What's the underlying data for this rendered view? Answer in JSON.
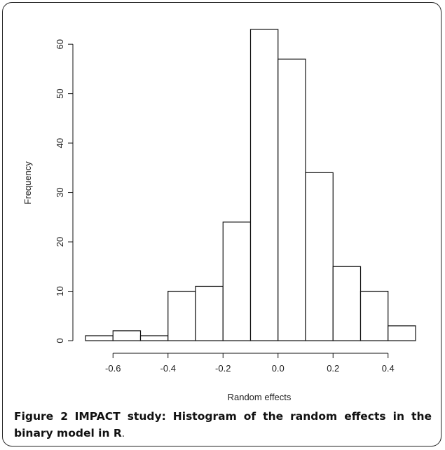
{
  "chart_data": {
    "type": "bar",
    "xlabel": "Random effects",
    "ylabel": "Frequency",
    "bins": [
      {
        "x0": -0.7,
        "x1": -0.6,
        "count": 1
      },
      {
        "x0": -0.6,
        "x1": -0.5,
        "count": 2
      },
      {
        "x0": -0.5,
        "x1": -0.4,
        "count": 1
      },
      {
        "x0": -0.4,
        "x1": -0.3,
        "count": 10
      },
      {
        "x0": -0.3,
        "x1": -0.2,
        "count": 11
      },
      {
        "x0": -0.2,
        "x1": -0.1,
        "count": 24
      },
      {
        "x0": -0.1,
        "x1": 0.0,
        "count": 63
      },
      {
        "x0": 0.0,
        "x1": 0.1,
        "count": 57
      },
      {
        "x0": 0.1,
        "x1": 0.2,
        "count": 34
      },
      {
        "x0": 0.2,
        "x1": 0.3,
        "count": 15
      },
      {
        "x0": 0.3,
        "x1": 0.4,
        "count": 10
      },
      {
        "x0": 0.4,
        "x1": 0.5,
        "count": 3
      }
    ],
    "xticks": [
      -0.6,
      -0.4,
      -0.2,
      0.0,
      0.2,
      0.4
    ],
    "xtick_labels": [
      "-0.6",
      "-0.4",
      "-0.2",
      "0.0",
      "0.2",
      "0.4"
    ],
    "yticks": [
      0,
      10,
      20,
      30,
      40,
      50,
      60
    ],
    "ytick_labels": [
      "0",
      "10",
      "20",
      "30",
      "40",
      "50",
      "60"
    ],
    "xlim": [
      -0.7,
      0.5
    ],
    "ylim": [
      0,
      63
    ],
    "grid": false
  },
  "caption": {
    "label": "Figure 2",
    "text": "IMPACT study: Histogram of the random effects in the binary model in R",
    "tail": "."
  }
}
